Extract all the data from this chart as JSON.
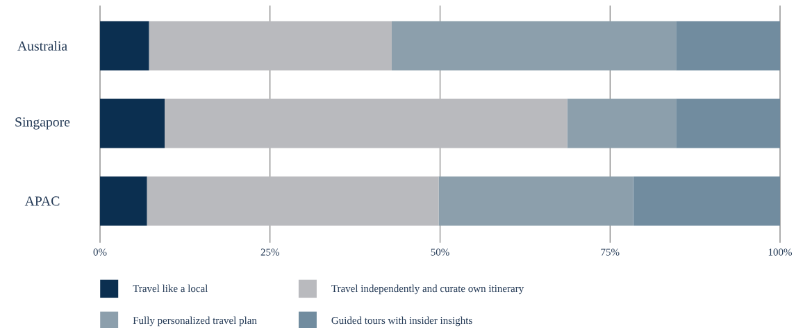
{
  "chart_data": {
    "type": "bar",
    "orientation": "horizontal",
    "stacked": true,
    "categories": [
      "Australia",
      "Singapore",
      "APAC"
    ],
    "series": [
      {
        "name": "Travel like a local",
        "color": "#0b2f50",
        "values": [
          7.2,
          9.5,
          6.9
        ]
      },
      {
        "name": "Travel independently and curate own itinerary",
        "color": "#b9babe",
        "values": [
          35.7,
          59.2,
          42.9
        ]
      },
      {
        "name": "Fully personalized travel plan",
        "color": "#8c9fac",
        "values": [
          41.8,
          16.0,
          28.6
        ]
      },
      {
        "name": "Guided tours with insider insights",
        "color": "#718c9f",
        "values": [
          15.3,
          15.3,
          21.6
        ]
      }
    ],
    "xlim": [
      0,
      100
    ],
    "xticks": [
      {
        "value": 0,
        "label": "0%"
      },
      {
        "value": 25,
        "label": "25%"
      },
      {
        "value": 50,
        "label": "50%"
      },
      {
        "value": 75,
        "label": "75%"
      },
      {
        "value": 100,
        "label": "100%"
      }
    ],
    "grid": "x",
    "legend": "bottom"
  }
}
